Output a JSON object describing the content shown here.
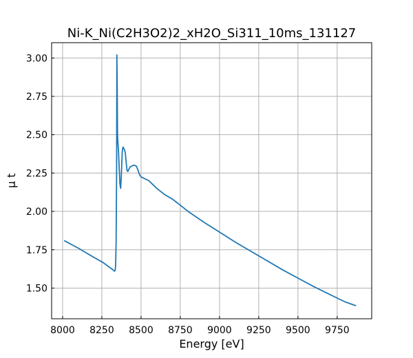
{
  "chart_data": {
    "type": "line",
    "title": "Ni-K_Ni(C2H3O2)2_xH2O_Si311_10ms_131127",
    "xlabel": "Energy [eV]",
    "ylabel": "μ t",
    "xlim": [
      7930,
      9970
    ],
    "ylim": [
      1.3,
      3.1
    ],
    "xticks": [
      8000,
      8250,
      8500,
      8750,
      9000,
      9250,
      9500,
      9750
    ],
    "yticks": [
      1.5,
      1.75,
      2.0,
      2.25,
      2.5,
      2.75,
      3.0
    ],
    "grid": true,
    "color": "#1f77b4",
    "series": [
      {
        "x": [
          8010,
          8100,
          8200,
          8260,
          8300,
          8320,
          8330,
          8335,
          8338,
          8341,
          8344,
          8346,
          8348,
          8350,
          8353,
          8356,
          8360,
          8365,
          8370,
          8375,
          8380,
          8385,
          8390,
          8395,
          8400,
          8405,
          8410,
          8415,
          8420,
          8430,
          8440,
          8450,
          8460,
          8470,
          8480,
          8490,
          8500,
          8520,
          8550,
          8580,
          8600,
          8650,
          8700,
          8750,
          8800,
          8900,
          9000,
          9100,
          9200,
          9300,
          9400,
          9500,
          9600,
          9700,
          9800,
          9870
        ],
        "y": [
          1.81,
          1.76,
          1.7,
          1.665,
          1.635,
          1.62,
          1.61,
          1.615,
          1.65,
          1.8,
          2.25,
          3.02,
          2.8,
          2.5,
          2.44,
          2.4,
          2.3,
          2.18,
          2.15,
          2.25,
          2.39,
          2.42,
          2.41,
          2.4,
          2.38,
          2.32,
          2.27,
          2.26,
          2.27,
          2.29,
          2.295,
          2.3,
          2.3,
          2.295,
          2.27,
          2.24,
          2.225,
          2.215,
          2.2,
          2.17,
          2.15,
          2.11,
          2.08,
          2.04,
          2.0,
          1.93,
          1.865,
          1.8,
          1.74,
          1.68,
          1.62,
          1.565,
          1.51,
          1.46,
          1.41,
          1.385
        ]
      }
    ]
  }
}
